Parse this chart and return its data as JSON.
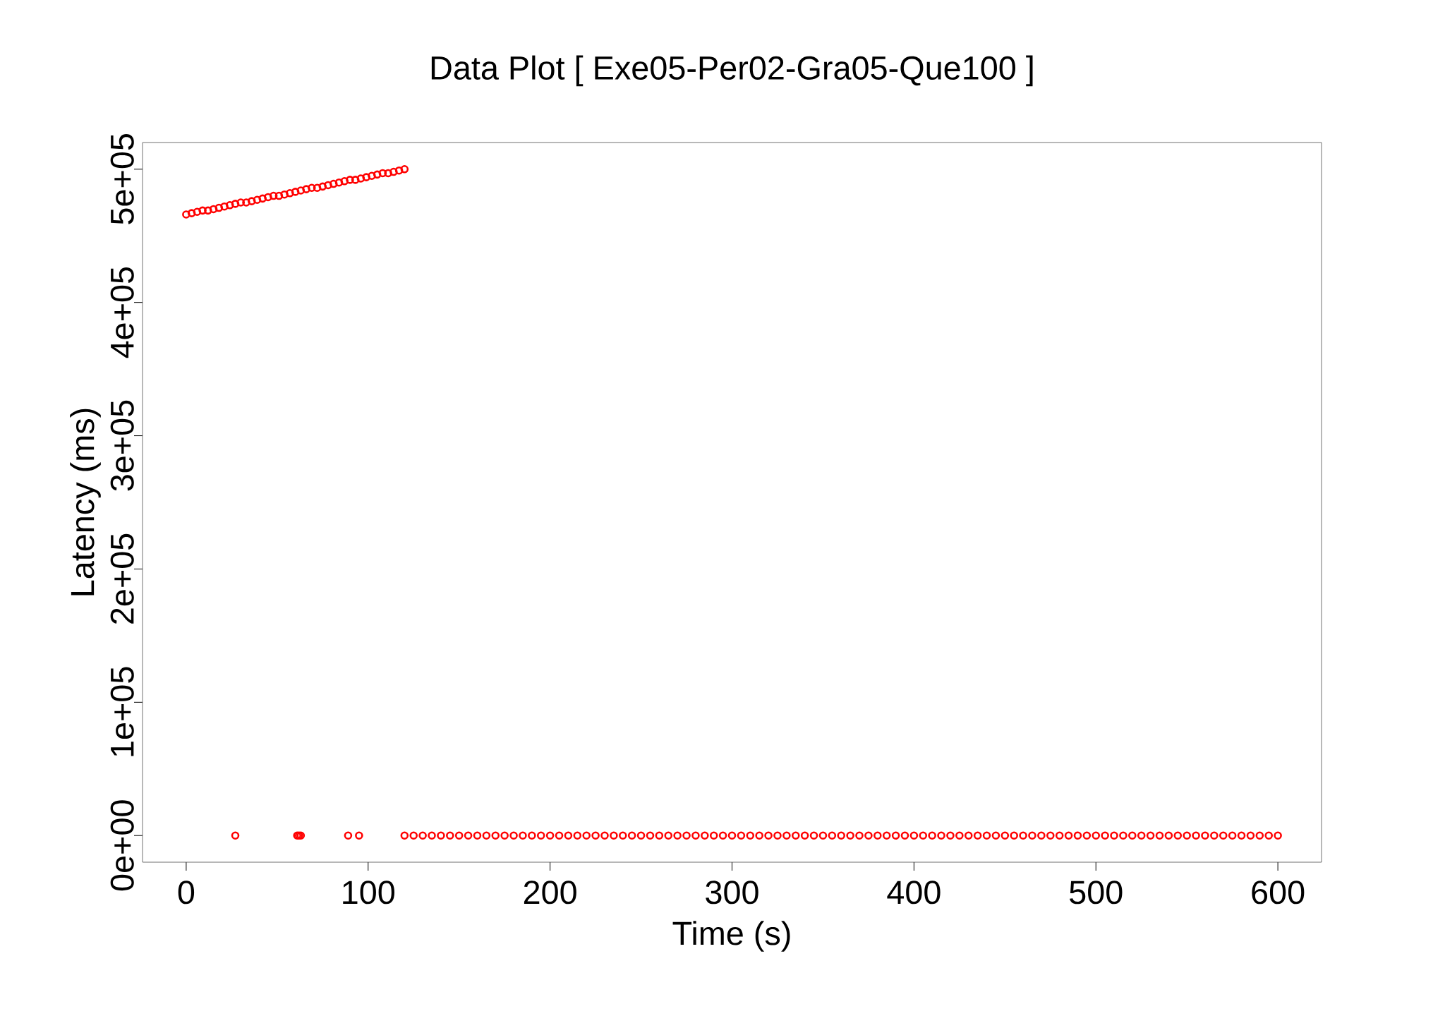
{
  "chart_data": {
    "type": "scatter",
    "title": "Data Plot [ Exe05-Per02-Gra05-Que100 ]",
    "xlabel": "Time (s)",
    "ylabel": "Latency (ms)",
    "xlim": [
      -24,
      624
    ],
    "xticks": [
      0,
      100,
      200,
      300,
      400,
      500,
      600
    ],
    "ylim": [
      -20000,
      520000
    ],
    "yticks": [
      {
        "value": 0,
        "label": "0e+00"
      },
      {
        "value": 100000,
        "label": "1e+05"
      },
      {
        "value": 200000,
        "label": "2e+05"
      },
      {
        "value": 300000,
        "label": "3e+05"
      },
      {
        "value": 400000,
        "label": "4e+05"
      },
      {
        "value": 500000,
        "label": "5e+05"
      }
    ],
    "grid": false,
    "marker": "circle",
    "series": [
      {
        "color": "#ff0000",
        "x": [
          0,
          3,
          6,
          9,
          12,
          15,
          18,
          21,
          24,
          27,
          30,
          33,
          36,
          39,
          42,
          45,
          48,
          51,
          54,
          57,
          60,
          63,
          66,
          69,
          72,
          75,
          78,
          81,
          84,
          87,
          90,
          93,
          96,
          99,
          102,
          105,
          108,
          111,
          114,
          117,
          120,
          27,
          61,
          62,
          63,
          89,
          95,
          120,
          125,
          130,
          135,
          140,
          145,
          150,
          155,
          160,
          165,
          170,
          175,
          180,
          185,
          190,
          195,
          200,
          205,
          210,
          215,
          220,
          225,
          230,
          235,
          240,
          245,
          250,
          255,
          260,
          265,
          270,
          275,
          280,
          285,
          290,
          295,
          300,
          305,
          310,
          315,
          320,
          325,
          330,
          335,
          340,
          345,
          350,
          355,
          360,
          365,
          370,
          375,
          380,
          385,
          390,
          395,
          400,
          405,
          410,
          415,
          420,
          425,
          430,
          435,
          440,
          445,
          450,
          455,
          460,
          465,
          470,
          475,
          480,
          485,
          490,
          495,
          500,
          505,
          510,
          515,
          520,
          525,
          530,
          535,
          540,
          545,
          550,
          555,
          560,
          565,
          570,
          575,
          580,
          585,
          590,
          595,
          600
        ],
        "values": [
          466000,
          467000,
          468000,
          469000,
          469000,
          470000,
          471000,
          472000,
          473000,
          474000,
          475000,
          475000,
          476000,
          477000,
          478000,
          479000,
          480000,
          480000,
          481000,
          482000,
          483000,
          484000,
          485000,
          486000,
          486000,
          487000,
          488000,
          489000,
          490000,
          491000,
          492000,
          492000,
          493000,
          494000,
          495000,
          496000,
          497000,
          497000,
          498000,
          499000,
          500000,
          0,
          0,
          0,
          0,
          0,
          0,
          0,
          0,
          0,
          0,
          0,
          0,
          0,
          0,
          0,
          0,
          0,
          0,
          0,
          0,
          0,
          0,
          0,
          0,
          0,
          0,
          0,
          0,
          0,
          0,
          0,
          0,
          0,
          0,
          0,
          0,
          0,
          0,
          0,
          0,
          0,
          0,
          0,
          0,
          0,
          0,
          0,
          0,
          0,
          0,
          0,
          0,
          0,
          0,
          0,
          0,
          0,
          0,
          0,
          0,
          0,
          0,
          0,
          0,
          0,
          0,
          0,
          0,
          0,
          0,
          0,
          0,
          0,
          0,
          0,
          0,
          0,
          0,
          0,
          0,
          0,
          0,
          0,
          0,
          0,
          0,
          0,
          0,
          0,
          0,
          0,
          0,
          0,
          0,
          0,
          0,
          0,
          0,
          0,
          0,
          0,
          0,
          0
        ]
      }
    ]
  }
}
